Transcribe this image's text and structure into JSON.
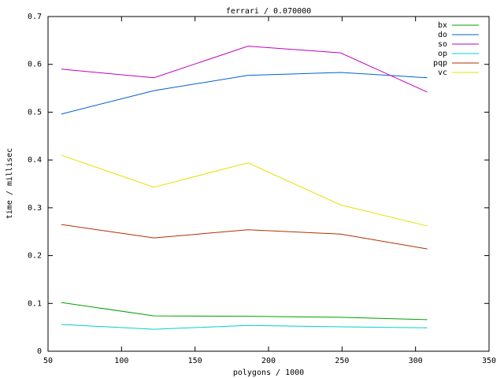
{
  "chart_data": {
    "type": "line",
    "title": "ferrari / 0.070000",
    "xlabel": "polygons / 1000",
    "ylabel": "time / millisec",
    "x": [
      59,
      122,
      186,
      249,
      308
    ],
    "xlim": [
      50,
      350
    ],
    "xticks": [
      50,
      100,
      150,
      200,
      250,
      300,
      350
    ],
    "ylim": [
      0,
      0.7
    ],
    "yticks": [
      0,
      0.1,
      0.2,
      0.3,
      0.4,
      0.5,
      0.6,
      0.7
    ],
    "legend": "upper right",
    "series": [
      {
        "name": "bx",
        "color": "#00a000",
        "values": [
          0.102,
          0.074,
          0.073,
          0.071,
          0.066
        ]
      },
      {
        "name": "do",
        "color": "#0060d0",
        "values": [
          0.496,
          0.545,
          0.577,
          0.583,
          0.572
        ]
      },
      {
        "name": "so",
        "color": "#c000c0",
        "values": [
          0.59,
          0.572,
          0.638,
          0.624,
          0.542
        ]
      },
      {
        "name": "op",
        "color": "#00d0d0",
        "values": [
          0.056,
          0.046,
          0.054,
          0.051,
          0.049
        ]
      },
      {
        "name": "pqp",
        "color": "#b03000",
        "values": [
          0.265,
          0.237,
          0.254,
          0.245,
          0.214
        ]
      },
      {
        "name": "vc",
        "color": "#e8e000",
        "values": [
          0.41,
          0.343,
          0.394,
          0.306,
          0.262
        ]
      }
    ]
  }
}
